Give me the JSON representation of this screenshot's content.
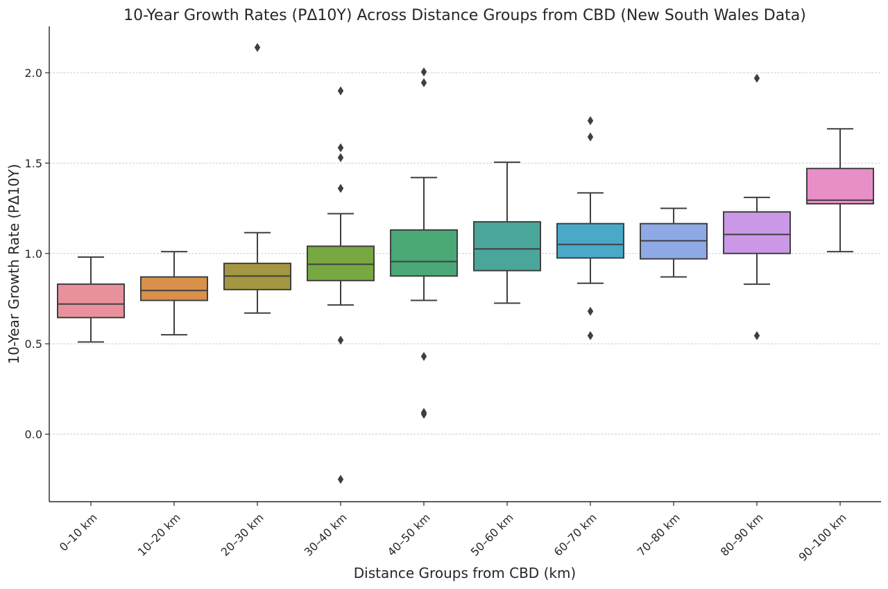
{
  "chart_data": {
    "type": "box",
    "title": "10-Year Growth Rates (PΔ10Y) Across Distance Groups from CBD (New South Wales Data)",
    "xlabel": "Distance Groups from CBD (km)",
    "ylabel": "10-Year Growth Rate (PΔ10Y)",
    "ylim": [
      -0.37,
      2.26
    ],
    "yticks": [
      0.0,
      0.5,
      1.0,
      1.5,
      2.0
    ],
    "ytick_labels": [
      "0.0",
      "0.5",
      "1.0",
      "1.5",
      "2.0"
    ],
    "grid": "horizontal dashed",
    "categories": [
      "0–10 km",
      "10–20 km",
      "20–30 km",
      "30–40 km",
      "40–50 km",
      "50–60 km",
      "60–70 km",
      "70–80 km",
      "80–90 km",
      "90–100 km"
    ],
    "boxes": [
      {
        "whisker_low": 0.51,
        "q1": 0.645,
        "median": 0.72,
        "q3": 0.83,
        "whisker_high": 0.98,
        "outliers": [],
        "color": "#e8919c"
      },
      {
        "whisker_low": 0.55,
        "q1": 0.74,
        "median": 0.795,
        "q3": 0.87,
        "whisker_high": 1.01,
        "outliers": [],
        "color": "#d9904a"
      },
      {
        "whisker_low": 0.67,
        "q1": 0.8,
        "median": 0.875,
        "q3": 0.945,
        "whisker_high": 1.115,
        "outliers": [
          2.14
        ],
        "color": "#a59741"
      },
      {
        "whisker_low": 0.715,
        "q1": 0.85,
        "median": 0.94,
        "q3": 1.04,
        "whisker_high": 1.22,
        "outliers": [
          1.9,
          1.585,
          1.53,
          1.36,
          0.52,
          -0.25
        ],
        "color": "#77a842"
      },
      {
        "whisker_low": 0.74,
        "q1": 0.875,
        "median": 0.955,
        "q3": 1.13,
        "whisker_high": 1.42,
        "outliers": [
          2.005,
          1.945,
          0.43,
          0.12,
          0.11
        ],
        "color": "#4aa977"
      },
      {
        "whisker_low": 0.725,
        "q1": 0.905,
        "median": 1.025,
        "q3": 1.175,
        "whisker_high": 1.505,
        "outliers": [],
        "color": "#4aa69b"
      },
      {
        "whisker_low": 0.835,
        "q1": 0.975,
        "median": 1.05,
        "q3": 1.165,
        "whisker_high": 1.335,
        "outliers": [
          1.735,
          1.645,
          0.68,
          0.545
        ],
        "color": "#4aa9c9"
      },
      {
        "whisker_low": 0.87,
        "q1": 0.97,
        "median": 1.07,
        "q3": 1.165,
        "whisker_high": 1.25,
        "outliers": [],
        "color": "#8fa9e6"
      },
      {
        "whisker_low": 0.83,
        "q1": 1.0,
        "median": 1.105,
        "q3": 1.23,
        "whisker_high": 1.31,
        "outliers": [
          1.97,
          0.545
        ],
        "color": "#ca98e6"
      },
      {
        "whisker_low": 1.01,
        "q1": 1.275,
        "median": 1.295,
        "q3": 1.47,
        "whisker_high": 1.69,
        "outliers": [],
        "color": "#e98fc8"
      }
    ]
  }
}
